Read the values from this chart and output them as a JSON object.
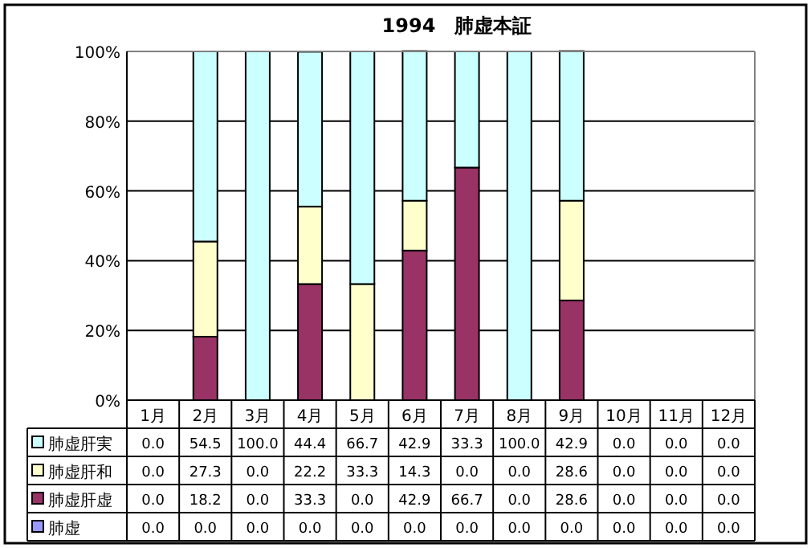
{
  "chart_data": {
    "type": "bar",
    "title": "1994　肺虚本証",
    "stacked": true,
    "categories": [
      "1月",
      "2月",
      "3月",
      "4月",
      "5月",
      "6月",
      "7月",
      "8月",
      "9月",
      "10月",
      "11月",
      "12月"
    ],
    "ylim": [
      0,
      100
    ],
    "yticks": [
      {
        "value": 0,
        "label": "0%"
      },
      {
        "value": 20,
        "label": "20%"
      },
      {
        "value": 40,
        "label": "40%"
      },
      {
        "value": 60,
        "label": "60%"
      },
      {
        "value": 80,
        "label": "80%"
      },
      {
        "value": 100,
        "label": "100%"
      }
    ],
    "grid": "y",
    "legend": "left",
    "series": [
      {
        "name": "肺虚",
        "color": "#9999ff",
        "values": [
          0,
          0,
          0,
          0,
          0,
          0,
          0,
          0,
          0,
          0,
          0,
          0
        ],
        "value_labels": [
          "0.0",
          "0.0",
          "0.0",
          "0.0",
          "0.0",
          "0.0",
          "0.0",
          "0.0",
          "0.0",
          "0.0",
          "0.0",
          "0.0"
        ]
      },
      {
        "name": "肺虚肝虚",
        "color": "#993366",
        "values": [
          0,
          18.2,
          0,
          33.3,
          0,
          42.9,
          66.7,
          0,
          28.6,
          0,
          0,
          0
        ],
        "value_labels": [
          "0.0",
          "18.2",
          "0.0",
          "33.3",
          "0.0",
          "42.9",
          "66.7",
          "0.0",
          "28.6",
          "0.0",
          "0.0",
          "0.0"
        ]
      },
      {
        "name": "肺虚肝和",
        "color": "#ffffcc",
        "values": [
          0,
          27.3,
          0,
          22.2,
          33.3,
          14.3,
          0,
          0,
          28.6,
          0,
          0,
          0
        ],
        "value_labels": [
          "0.0",
          "27.3",
          "0.0",
          "22.2",
          "33.3",
          "14.3",
          "0.0",
          "0.0",
          "28.6",
          "0.0",
          "0.0",
          "0.0"
        ]
      },
      {
        "name": "肺虚肝実",
        "color": "#ccffff",
        "values": [
          0,
          54.5,
          100,
          44.4,
          66.7,
          42.9,
          33.3,
          100,
          42.9,
          0,
          0,
          0
        ],
        "value_labels": [
          "0.0",
          "54.5",
          "100.0",
          "44.4",
          "66.7",
          "42.9",
          "33.3",
          "100.0",
          "42.9",
          "0.0",
          "0.0",
          "0.0"
        ]
      }
    ]
  }
}
